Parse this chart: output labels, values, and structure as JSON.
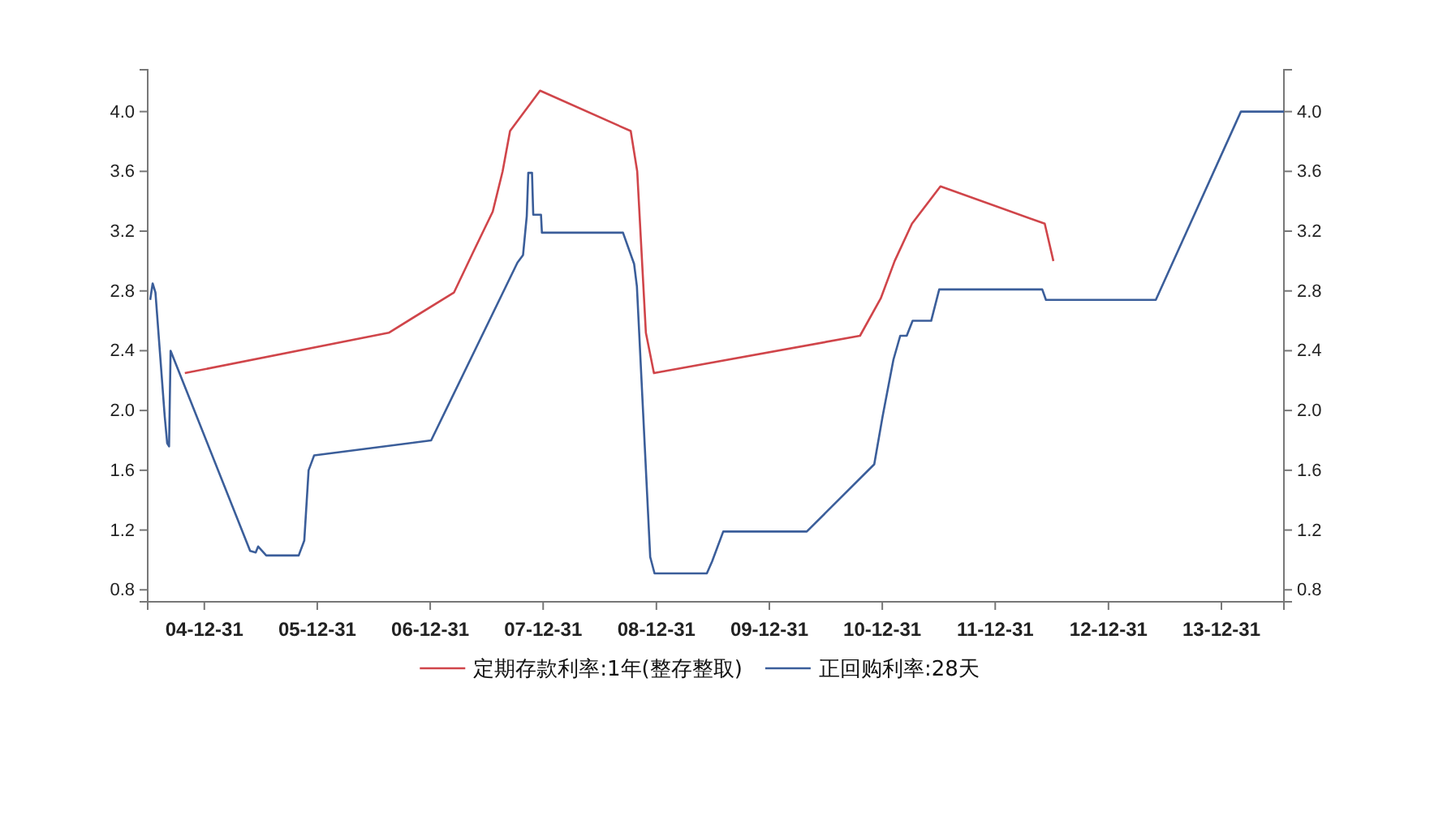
{
  "chart_data": {
    "type": "line",
    "xlim": [
      "2004-07-01",
      "2014-07-21"
    ],
    "xticks": [
      {
        "value": "2004-12-31",
        "label": "04-12-31"
      },
      {
        "value": "2005-12-31",
        "label": "05-12-31"
      },
      {
        "value": "2006-12-31",
        "label": "06-12-31"
      },
      {
        "value": "2007-12-31",
        "label": "07-12-31"
      },
      {
        "value": "2008-12-31",
        "label": "08-12-31"
      },
      {
        "value": "2009-12-31",
        "label": "09-12-31"
      },
      {
        "value": "2010-12-31",
        "label": "10-12-31"
      },
      {
        "value": "2011-12-31",
        "label": "11-12-31"
      },
      {
        "value": "2012-12-31",
        "label": "12-12-31"
      },
      {
        "value": "2013-12-31",
        "label": "13-12-31"
      }
    ],
    "ylim": [
      0.72,
      4.28
    ],
    "yticks": [
      {
        "value": 0.8,
        "label": "0.8"
      },
      {
        "value": 1.2,
        "label": "1.2"
      },
      {
        "value": 1.6,
        "label": "1.6"
      },
      {
        "value": 2.0,
        "label": "2.0"
      },
      {
        "value": 2.4,
        "label": "2.4"
      },
      {
        "value": 2.8,
        "label": "2.8"
      },
      {
        "value": 3.2,
        "label": "3.2"
      },
      {
        "value": 3.6,
        "label": "3.6"
      },
      {
        "value": 4.0,
        "label": "4.0"
      }
    ],
    "y2lim": [
      0.72,
      4.28
    ],
    "y2ticks": [
      {
        "value": 0.8,
        "label": "0.8"
      },
      {
        "value": 1.2,
        "label": "1.2"
      },
      {
        "value": 1.6,
        "label": "1.6"
      },
      {
        "value": 2.0,
        "label": "2.0"
      },
      {
        "value": 2.4,
        "label": "2.4"
      },
      {
        "value": 2.8,
        "label": "2.8"
      },
      {
        "value": 3.2,
        "label": "3.2"
      },
      {
        "value": 3.6,
        "label": "3.6"
      },
      {
        "value": 4.0,
        "label": "4.0"
      }
    ],
    "grid": false,
    "legend": "bottom",
    "marker": "none",
    "line_style": "solid",
    "series": [
      {
        "name": "定期存款利率:1年(整存整取)",
        "color": "#d0454a",
        "x": [
          "2004-10-29",
          "2006-08-19",
          "2007-03-18",
          "2007-05-19",
          "2007-07-21",
          "2007-08-22",
          "2007-09-15",
          "2007-12-21",
          "2008-10-09",
          "2008-10-30",
          "2008-11-27",
          "2008-12-23",
          "2010-10-20",
          "2010-12-26",
          "2011-02-09",
          "2011-04-06",
          "2011-07-07",
          "2012-06-08",
          "2012-07-06"
        ],
        "values": [
          2.25,
          2.52,
          2.79,
          3.06,
          3.33,
          3.6,
          3.87,
          4.14,
          3.87,
          3.6,
          2.52,
          2.25,
          2.5,
          2.75,
          3.0,
          3.25,
          3.5,
          3.25,
          3.0
        ]
      },
      {
        "name": "正回购利率:28天",
        "color": "#3b5e9a",
        "x": [
          "2004-07-09",
          "2004-07-17",
          "2004-07-26",
          "2004-08-25",
          "2004-09-02",
          "2004-09-08",
          "2004-09-13",
          "2005-05-28",
          "2005-06-15",
          "2005-06-23",
          "2005-07-19",
          "2005-11-01",
          "2005-11-19",
          "2005-12-03",
          "2005-12-21",
          "2007-01-03",
          "2007-10-09",
          "2007-10-27",
          "2007-11-08",
          "2007-11-13",
          "2007-11-25",
          "2007-11-29",
          "2007-12-24",
          "2007-12-27",
          "2008-09-14",
          "2008-10-20",
          "2008-10-29",
          "2008-12-11",
          "2008-12-25",
          "2009-06-12",
          "2009-06-29",
          "2009-08-04",
          "2010-05-01",
          "2010-12-05",
          "2011-01-01",
          "2011-02-05",
          "2011-02-27",
          "2011-03-20",
          "2011-04-08",
          "2011-06-07",
          "2011-07-03",
          "2012-05-31",
          "2012-06-12",
          "2013-06-02",
          "2014-03-04",
          "2014-07-21"
        ],
        "values": [
          2.74,
          2.85,
          2.79,
          1.96,
          1.78,
          1.76,
          2.4,
          1.06,
          1.05,
          1.09,
          1.03,
          1.03,
          1.13,
          1.6,
          1.7,
          1.8,
          2.99,
          3.04,
          3.3,
          3.59,
          3.59,
          3.31,
          3.31,
          3.19,
          3.19,
          2.98,
          2.83,
          1.02,
          0.91,
          0.91,
          0.99,
          1.19,
          1.19,
          1.64,
          1.96,
          2.34,
          2.5,
          2.5,
          2.6,
          2.6,
          2.81,
          2.81,
          2.74,
          2.74,
          4.0,
          4.0
        ]
      }
    ]
  }
}
